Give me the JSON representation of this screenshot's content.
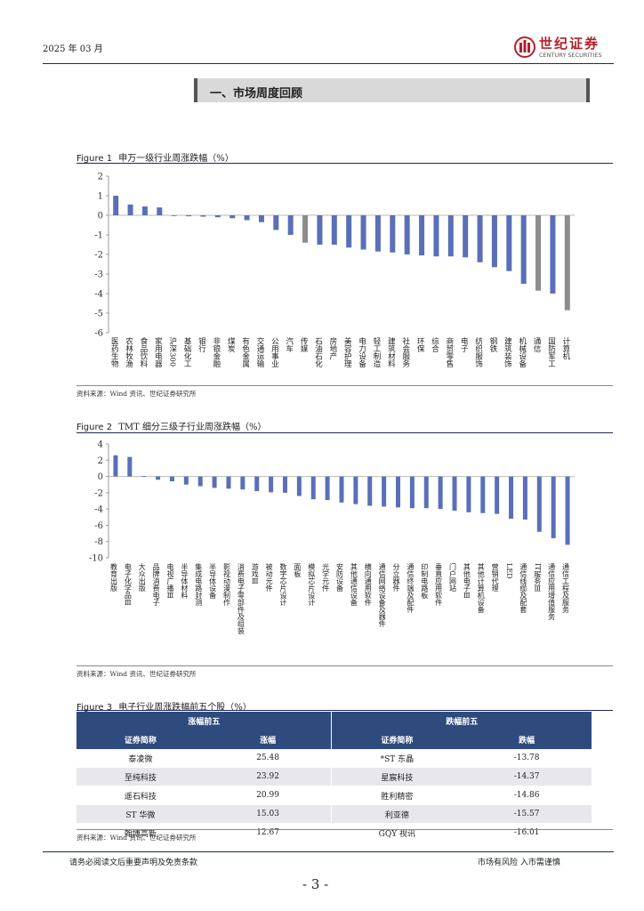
{
  "header": {
    "date": "2025 年 03 月",
    "brand_cn": "世纪证券",
    "brand_en": "CENTURY SECURITIES"
  },
  "section_title": "一、市场周度回顾",
  "figure1": {
    "label": "Figure 1",
    "caption": "申万一级行业周涨跌幅（%）",
    "source": "资料来源：Wind 资讯、世纪证券研究所",
    "chart_data": {
      "type": "bar",
      "title": "申万一级行业周涨跌幅（%）",
      "ylim": [
        -6,
        2
      ],
      "yticks": [
        2,
        1,
        0,
        -1,
        -2,
        -3,
        -4,
        -5,
        -6
      ],
      "colors": {
        "default": "#5a6fb8",
        "highlight": "#8c8c8c"
      },
      "categories": [
        "医药生物",
        "农林牧渔",
        "食品饮料",
        "家用电器",
        "沪深300",
        "基础化工",
        "银行",
        "非银金融",
        "煤炭",
        "有色金属",
        "交通运输",
        "公用事业",
        "汽车",
        "传媒",
        "石油石化",
        "房地产",
        "美容护理",
        "电力设备",
        "轻工制造",
        "建筑材料",
        "社会服务",
        "环保",
        "综合",
        "商贸零售",
        "电子",
        "纺织服饰",
        "钢铁",
        "建筑装饰",
        "机械设备",
        "通信",
        "国防军工",
        "计算机"
      ],
      "values": [
        1.0,
        0.55,
        0.45,
        0.4,
        0.0,
        -0.05,
        -0.07,
        -0.1,
        -0.15,
        -0.25,
        -0.35,
        -0.75,
        -1.0,
        -1.4,
        -1.5,
        -1.5,
        -1.65,
        -1.75,
        -1.85,
        -1.9,
        -2.0,
        -2.05,
        -2.1,
        -2.1,
        -2.15,
        -2.4,
        -2.65,
        -2.85,
        -3.5,
        -3.85,
        -4.0,
        -4.85
      ],
      "highlight": [
        0,
        0,
        0,
        0,
        0,
        0,
        0,
        0,
        0,
        0,
        0,
        0,
        0,
        1,
        0,
        0,
        0,
        0,
        0,
        0,
        0,
        0,
        0,
        0,
        0,
        0,
        0,
        0,
        0,
        1,
        0,
        1
      ]
    }
  },
  "figure2": {
    "label": "Figure 2",
    "caption": "TMT 细分三级子行业周涨跌幅（%）",
    "source": "资料来源：Wind 资讯、世纪证券研究所",
    "chart_data": {
      "type": "bar",
      "title": "TMT 细分三级子行业周涨跌幅（%）",
      "ylim": [
        -10,
        4
      ],
      "yticks": [
        4,
        2,
        0,
        -2,
        -4,
        -6,
        -8,
        -10
      ],
      "colors": {
        "default": "#5a6fb8"
      },
      "categories": [
        "教育出版",
        "电子化学品Ⅲ",
        "大众出版",
        "品牌消费电子",
        "电视广播Ⅲ",
        "半导体材料",
        "集成电路封测",
        "半导体设备",
        "影视动漫制作",
        "消费电子零部件及组装",
        "游戏Ⅲ",
        "被动元件",
        "数字芯片设计",
        "面板",
        "模拟芯片设计",
        "光学元件",
        "安防设备",
        "其他通信设备",
        "横向通用软件",
        "通信网络设备及器件",
        "分立器件",
        "通信终端及配件",
        "印制电路板",
        "垂直应用软件",
        "门户网站",
        "其他电子Ⅲ",
        "其他计算机设备",
        "营销代理",
        "LED",
        "通信线缆及配套",
        "IT服务Ⅲ",
        "通信应用增值服务",
        "通信工程及服务"
      ],
      "values": [
        2.6,
        2.4,
        0.05,
        -0.4,
        -0.6,
        -1.0,
        -1.2,
        -1.4,
        -1.5,
        -1.6,
        -1.8,
        -1.95,
        -2.0,
        -2.4,
        -2.8,
        -2.9,
        -3.2,
        -3.4,
        -3.6,
        -3.7,
        -3.8,
        -3.9,
        -3.9,
        -4.0,
        -4.2,
        -4.4,
        -4.5,
        -4.6,
        -5.2,
        -5.3,
        -6.8,
        -7.6,
        -8.4
      ]
    }
  },
  "figure3": {
    "label": "Figure 3",
    "caption": "电子行业周涨跌幅前五个股（%）",
    "source": "资料来源：Wind 资讯、世纪证券研究所",
    "group_up": "涨幅前五",
    "group_down": "跌幅前五",
    "col_name_up": "证券简称",
    "col_change_up": "涨幅",
    "col_name_down": "证券简称",
    "col_change_down": "跌幅",
    "rows": [
      {
        "up_name": "泰凌微",
        "up_change": "25.48",
        "down_name": "*ST 东晶",
        "down_change": "-13.78"
      },
      {
        "up_name": "至纯科技",
        "up_change": "23.92",
        "down_name": "星宸科技",
        "down_change": "-14.37"
      },
      {
        "up_name": "遥石科技",
        "up_change": "20.99",
        "down_name": "胜利精密",
        "down_change": "-14.86"
      },
      {
        "up_name": "ST 华微",
        "up_change": "15.03",
        "down_name": "利亚德",
        "down_change": "-15.57"
      },
      {
        "up_name": "翰博高新",
        "up_change": "12.67",
        "down_name": "GQY 视讯",
        "down_change": "-16.01"
      }
    ]
  },
  "footer": {
    "disclaimer": "请务必阅读文后重要声明及免责条款",
    "risk": "市场有风险  入市需谨慎",
    "page_number": "- 3 -"
  }
}
